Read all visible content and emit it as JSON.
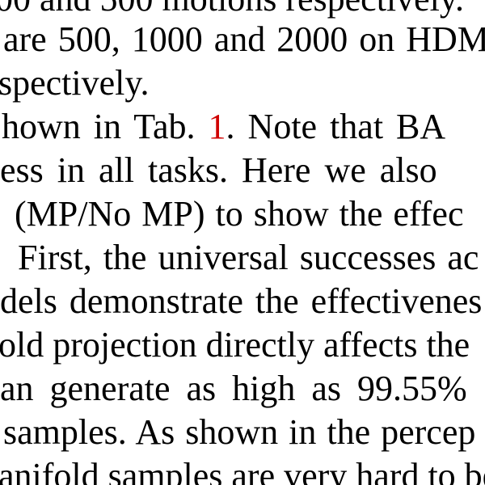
{
  "text": {
    "lines": [
      "00 and 500 motions respectively.",
      "are 500, 1000 and 2000 on HDM",
      "spectively.",
      "hown in Tab. ",
      "ess in all tasks.  Here we also",
      "(MP/No MP) to show the effec",
      "First, the universal successes ac",
      "dels demonstrate the effectivenes",
      "old projection directly affects the",
      "an generate as high as 99.55%",
      "samples.  As shown in the percep",
      "anifold samples are very hard to be"
    ],
    "line3_ref": "1",
    "line3_tail": ".   Note that BA"
  },
  "colors": {
    "text": "#000000",
    "reference_link": "#d00000",
    "background": "#ffffff"
  }
}
